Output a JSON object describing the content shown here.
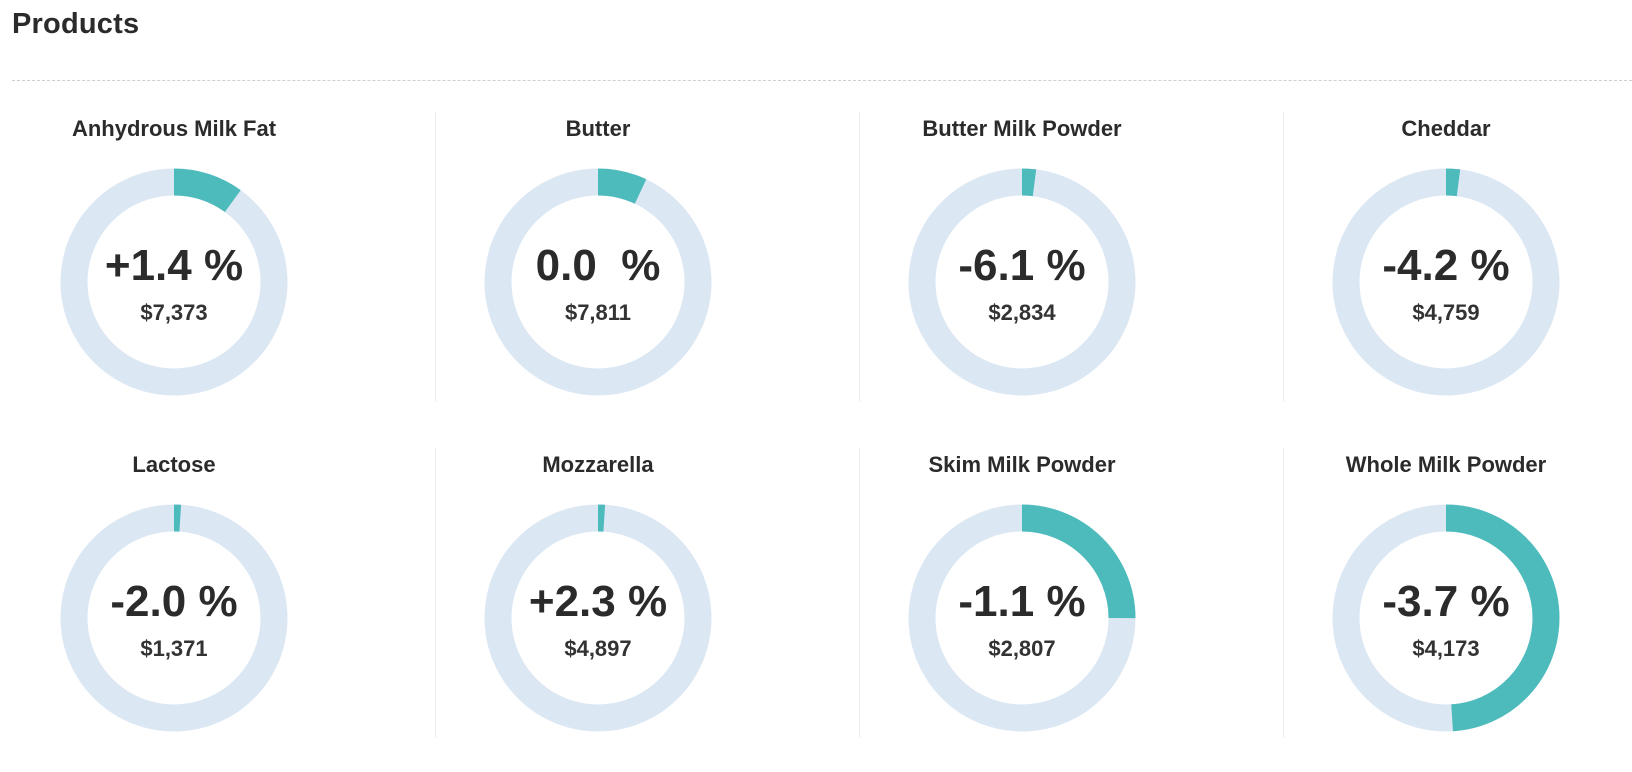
{
  "page": {
    "title": "Products"
  },
  "colors": {
    "ring_track": "#dce7f4",
    "ring_fill": "#4dbabc",
    "divider": "#ededed",
    "text": "#2b2b2b"
  },
  "products": [
    {
      "name": "Anhydrous Milk Fat",
      "change": "+1.4 %",
      "price": "$7,373",
      "fill_fraction": 0.1
    },
    {
      "name": "Butter",
      "change": "0.0  %",
      "price": "$7,811",
      "fill_fraction": 0.07
    },
    {
      "name": "Butter Milk Powder",
      "change": "-6.1 %",
      "price": "$2,834",
      "fill_fraction": 0.02
    },
    {
      "name": "Cheddar",
      "change": "-4.2 %",
      "price": "$4,759",
      "fill_fraction": 0.02
    },
    {
      "name": "Lactose",
      "change": "-2.0 %",
      "price": "$1,371",
      "fill_fraction": 0.01
    },
    {
      "name": "Mozzarella",
      "change": "+2.3 %",
      "price": "$4,897",
      "fill_fraction": 0.01
    },
    {
      "name": "Skim Milk Powder",
      "change": "-1.1 %",
      "price": "$2,807",
      "fill_fraction": 0.25
    },
    {
      "name": "Whole Milk Powder",
      "change": "-3.7 %",
      "price": "$4,173",
      "fill_fraction": 0.49
    }
  ]
}
